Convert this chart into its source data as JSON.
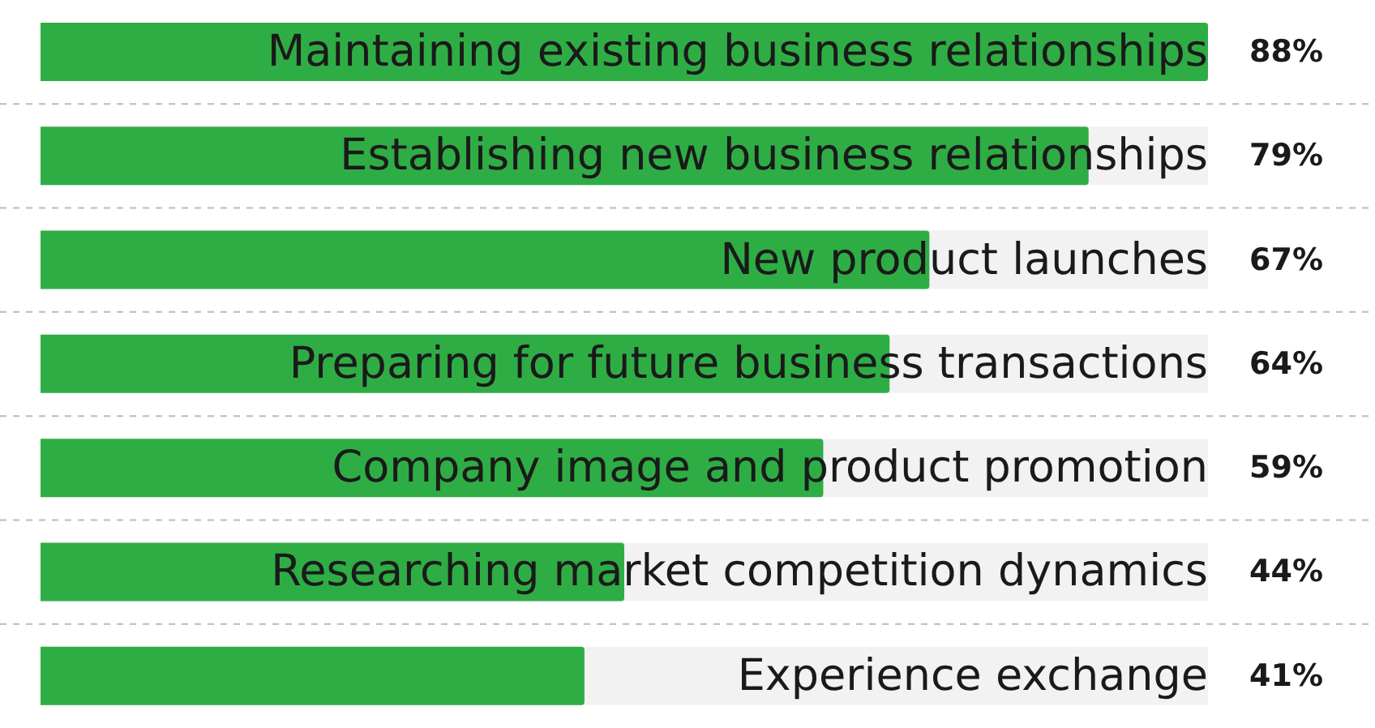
{
  "chart_data": {
    "type": "bar",
    "orientation": "horizontal",
    "categories": [
      "Maintaining existing business relationships",
      "Establishing new business relationships",
      "New product launches",
      "Preparing for future business transactions",
      "Company image and product promotion",
      "Researching market competition dynamics",
      "Experience exchange"
    ],
    "values": [
      88,
      79,
      67,
      64,
      59,
      44,
      41
    ],
    "value_labels": [
      "88%",
      "79%",
      "67%",
      "64%",
      "59%",
      "44%",
      "41%"
    ],
    "color": "#2fad45"
  }
}
